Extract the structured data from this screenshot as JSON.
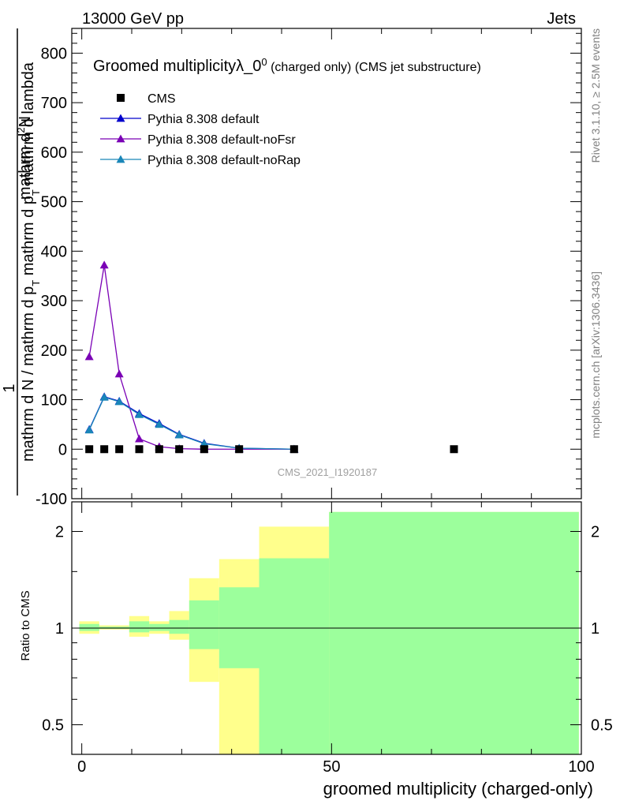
{
  "header": {
    "left": "13000 GeV pp",
    "right": "Jets"
  },
  "side": {
    "rivet": "Rivet 3.1.10, ≥ 2.5M events",
    "mcplots": "mcplots.cern.ch [arXiv:1306.3436]"
  },
  "chart_data": {
    "type": "scatter",
    "title": "Groomed multiplicityλ_0",
    "title_sup": "0",
    "title_suffix": " (charged only) (CMS jet substructure)",
    "watermark": "CMS_2021_I1920187",
    "xlabel": "groomed multiplicity (charged-only)",
    "ylabel_lines": [
      "mathrm d N / mathrm d p",
      "T",
      " mathrm d p",
      "T",
      " mathrm d lambda",
      "1",
      "mathrm d",
      "2",
      "N"
    ],
    "ylabel_main": {
      "num_prefix": "mathrm d",
      "num_sup": "2",
      "num_suffix": "N",
      "den_a": "mathrm d N / mathrm d p",
      "den_sub1": "T",
      "den_b": " mathrm d p",
      "den_sub2": "T",
      "den_c": " mathrm d lambda",
      "one": "1"
    },
    "xlim": [
      -2,
      100
    ],
    "ylim": [
      -100,
      850
    ],
    "yticks": [
      -100,
      0,
      100,
      200,
      300,
      400,
      500,
      600,
      700,
      800
    ],
    "ratio": {
      "ylabel": "Ratio to CMS",
      "ylim": [
        0.42,
        2.25
      ],
      "yticks": [
        0.5,
        1,
        2
      ],
      "bands_outer": [
        {
          "x0": -0.5,
          "x1": 3.5,
          "lo": 0.96,
          "hi": 1.05
        },
        {
          "x0": 3.5,
          "x1": 9.5,
          "lo": 0.99,
          "hi": 1.02
        },
        {
          "x0": 9.5,
          "x1": 13.5,
          "lo": 0.94,
          "hi": 1.09
        },
        {
          "x0": 13.5,
          "x1": 17.5,
          "lo": 0.96,
          "hi": 1.05
        },
        {
          "x0": 17.5,
          "x1": 21.5,
          "lo": 0.92,
          "hi": 1.13
        },
        {
          "x0": 21.5,
          "x1": 27.5,
          "lo": 0.68,
          "hi": 1.43
        },
        {
          "x0": 27.5,
          "x1": 35.5,
          "lo": 0.37,
          "hi": 1.64
        },
        {
          "x0": 35.5,
          "x1": 49.5,
          "lo": 0.37,
          "hi": 2.07
        },
        {
          "x0": 49.5,
          "x1": 99.5,
          "lo": 0.37,
          "hi": 2.3
        }
      ],
      "bands_inner": [
        {
          "x0": -0.5,
          "x1": 3.5,
          "lo": 0.98,
          "hi": 1.03
        },
        {
          "x0": 3.5,
          "x1": 9.5,
          "lo": 0.995,
          "hi": 1.01
        },
        {
          "x0": 9.5,
          "x1": 13.5,
          "lo": 0.97,
          "hi": 1.05
        },
        {
          "x0": 13.5,
          "x1": 17.5,
          "lo": 0.98,
          "hi": 1.03
        },
        {
          "x0": 17.5,
          "x1": 21.5,
          "lo": 0.96,
          "hi": 1.06
        },
        {
          "x0": 21.5,
          "x1": 27.5,
          "lo": 0.86,
          "hi": 1.22
        },
        {
          "x0": 27.5,
          "x1": 35.5,
          "lo": 0.75,
          "hi": 1.34
        },
        {
          "x0": 35.5,
          "x1": 49.5,
          "lo": 0.4,
          "hi": 1.65
        },
        {
          "x0": 49.5,
          "x1": 99.5,
          "lo": 0.37,
          "hi": 2.3
        }
      ]
    },
    "series": [
      {
        "name": "CMS",
        "color": "#000000",
        "marker": "square",
        "line": false,
        "x": [
          1.5,
          4.5,
          7.5,
          11.5,
          15.5,
          19.5,
          24.5,
          31.5,
          42.5,
          74.5
        ],
        "y": [
          0,
          0,
          0,
          0,
          0,
          0,
          0,
          0,
          0,
          0
        ]
      },
      {
        "name": "Pythia 8.308 default",
        "color": "#0000cc",
        "marker": "triangle",
        "line": true,
        "x": [
          1.5,
          4.5,
          7.5,
          11.5,
          15.5,
          19.5,
          24.5,
          31.5,
          42.5
        ],
        "y": [
          40,
          106,
          97,
          72,
          52,
          30,
          12,
          2,
          0
        ]
      },
      {
        "name": "Pythia 8.308 default-noFsr",
        "color": "#7a00b5",
        "marker": "triangle",
        "line": true,
        "x": [
          1.5,
          4.5,
          7.5,
          11.5,
          15.5,
          19.5,
          24.5,
          31.5,
          42.5
        ],
        "y": [
          187,
          372,
          152,
          21,
          5,
          1,
          0,
          0,
          0
        ]
      },
      {
        "name": "Pythia 8.308 default-noRap",
        "color": "#1a86b8",
        "marker": "triangle",
        "line": true,
        "x": [
          1.5,
          4.5,
          7.5,
          11.5,
          15.5,
          19.5,
          24.5,
          31.5,
          42.5
        ],
        "y": [
          39,
          105,
          96,
          70,
          50,
          29,
          11,
          2,
          0
        ]
      }
    ]
  }
}
